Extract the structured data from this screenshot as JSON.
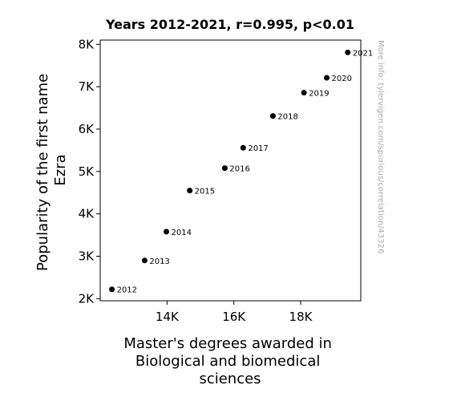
{
  "chart_data": {
    "type": "scatter",
    "title": "Years 2012-2021, r=0.995, p<0.01",
    "xlabel_lines": [
      "Master's degrees awarded in",
      "Biological and biomedical",
      "sciences"
    ],
    "ylabel_lines": [
      "Popularity of the first name",
      "Ezra"
    ],
    "watermark": "More info: tylervigen.com/spurious/correlation/43326",
    "xlim": [
      12000,
      19800
    ],
    "ylim": [
      1950,
      8100
    ],
    "x_ticks": [
      {
        "value": 14000,
        "label": "14K"
      },
      {
        "value": 16000,
        "label": "16K"
      },
      {
        "value": 18000,
        "label": "18K"
      }
    ],
    "y_ticks": [
      {
        "value": 2000,
        "label": "2K"
      },
      {
        "value": 3000,
        "label": "3K"
      },
      {
        "value": 4000,
        "label": "4K"
      },
      {
        "value": 5000,
        "label": "5K"
      },
      {
        "value": 6000,
        "label": "6K"
      },
      {
        "value": 7000,
        "label": "7K"
      },
      {
        "value": 8000,
        "label": "8K"
      }
    ],
    "points": [
      {
        "label": "2012",
        "x": 12350,
        "y": 2220
      },
      {
        "label": "2013",
        "x": 13330,
        "y": 2900
      },
      {
        "label": "2014",
        "x": 13980,
        "y": 3580
      },
      {
        "label": "2015",
        "x": 14680,
        "y": 4550
      },
      {
        "label": "2016",
        "x": 15730,
        "y": 5080
      },
      {
        "label": "2017",
        "x": 16280,
        "y": 5560
      },
      {
        "label": "2018",
        "x": 17170,
        "y": 6310
      },
      {
        "label": "2019",
        "x": 18100,
        "y": 6860
      },
      {
        "label": "2020",
        "x": 18780,
        "y": 7210
      },
      {
        "label": "2021",
        "x": 19410,
        "y": 7810
      }
    ],
    "grid": false,
    "legend": "none",
    "marker_color": "#000000"
  }
}
